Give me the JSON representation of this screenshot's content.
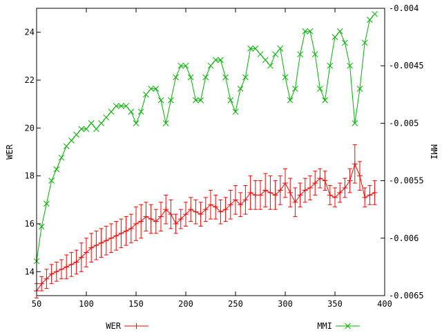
{
  "chart_data": {
    "type": "line",
    "xlabel": "",
    "ylabel": "WER",
    "y2label": "MMI",
    "xlim": [
      50,
      400
    ],
    "ylim": [
      13,
      25
    ],
    "y2lim": [
      -0.0065,
      -0.004
    ],
    "x_ticks": [
      "50",
      "100",
      "150",
      "200",
      "250",
      "300",
      "350",
      "400"
    ],
    "y_ticks": [
      "14",
      "16",
      "18",
      "20",
      "22",
      "24"
    ],
    "y2_ticks": [
      "-0.0065",
      "-0.006",
      "-0.0055",
      "-0.005",
      "-0.0045",
      "-0.004"
    ],
    "grid": false,
    "legend_position": "bottom",
    "series": [
      {
        "name": "WER",
        "axis": "left",
        "color": "#ff0000",
        "marker": "+",
        "x": [
          50,
          55,
          60,
          65,
          70,
          75,
          80,
          85,
          90,
          95,
          100,
          105,
          110,
          115,
          120,
          125,
          130,
          135,
          140,
          145,
          150,
          155,
          160,
          165,
          170,
          175,
          180,
          185,
          190,
          195,
          200,
          205,
          210,
          215,
          220,
          225,
          230,
          235,
          240,
          245,
          250,
          255,
          260,
          265,
          270,
          275,
          280,
          285,
          290,
          295,
          300,
          305,
          310,
          315,
          320,
          325,
          330,
          335,
          340,
          345,
          350,
          355,
          360,
          365,
          370,
          375,
          380,
          385,
          390
        ],
        "values": [
          13.2,
          13.5,
          13.7,
          13.9,
          14.0,
          14.1,
          14.2,
          14.3,
          14.4,
          14.6,
          14.8,
          15.0,
          15.1,
          15.2,
          15.3,
          15.4,
          15.5,
          15.6,
          15.7,
          15.8,
          16.0,
          16.1,
          16.3,
          16.2,
          16.1,
          16.3,
          16.6,
          16.4,
          16.0,
          16.2,
          16.4,
          16.6,
          16.5,
          16.4,
          16.6,
          16.8,
          16.7,
          16.5,
          16.6,
          16.8,
          17.0,
          16.8,
          17.0,
          17.3,
          17.2,
          17.2,
          17.4,
          17.3,
          17.2,
          17.4,
          17.7,
          17.3,
          16.9,
          17.2,
          17.4,
          17.5,
          17.7,
          17.9,
          17.8,
          17.2,
          17.1,
          17.3,
          17.5,
          17.8,
          18.5,
          18.0,
          17.1,
          17.2,
          17.3
        ],
        "err": [
          0.3,
          0.3,
          0.4,
          0.4,
          0.4,
          0.4,
          0.5,
          0.5,
          0.5,
          0.6,
          0.6,
          0.6,
          0.6,
          0.6,
          0.6,
          0.6,
          0.6,
          0.6,
          0.6,
          0.6,
          0.7,
          0.7,
          0.6,
          0.6,
          0.5,
          0.6,
          0.6,
          0.6,
          0.4,
          0.4,
          0.5,
          0.5,
          0.5,
          0.5,
          0.5,
          0.6,
          0.5,
          0.5,
          0.5,
          0.6,
          0.6,
          0.5,
          0.6,
          0.7,
          0.6,
          0.6,
          0.7,
          0.7,
          0.6,
          0.6,
          0.6,
          0.6,
          0.6,
          0.5,
          0.5,
          0.5,
          0.5,
          0.4,
          0.4,
          0.4,
          0.4,
          0.4,
          0.4,
          0.5,
          0.8,
          0.6,
          0.4,
          0.4,
          0.5
        ]
      },
      {
        "name": "MMI",
        "axis": "right",
        "color": "#00b000",
        "marker": "x",
        "x": [
          50,
          55,
          60,
          65,
          70,
          75,
          80,
          85,
          90,
          95,
          100,
          105,
          110,
          115,
          120,
          125,
          130,
          135,
          140,
          145,
          150,
          155,
          160,
          165,
          170,
          175,
          180,
          185,
          190,
          195,
          200,
          205,
          210,
          215,
          220,
          225,
          230,
          235,
          240,
          245,
          250,
          255,
          260,
          265,
          270,
          275,
          280,
          285,
          290,
          295,
          300,
          305,
          310,
          315,
          320,
          325,
          330,
          335,
          340,
          345,
          350,
          355,
          360,
          365,
          370,
          375,
          380,
          385,
          390
        ],
        "values": [
          -0.0062,
          -0.0059,
          -0.0057,
          -0.0055,
          -0.0054,
          -0.0053,
          -0.0052,
          -0.00515,
          -0.0051,
          -0.00505,
          -0.00505,
          -0.005,
          -0.00505,
          -0.005,
          -0.00495,
          -0.0049,
          -0.00485,
          -0.00485,
          -0.00485,
          -0.0049,
          -0.005,
          -0.0049,
          -0.00475,
          -0.0047,
          -0.0047,
          -0.0048,
          -0.005,
          -0.0048,
          -0.0046,
          -0.0045,
          -0.0045,
          -0.0046,
          -0.0048,
          -0.0048,
          -0.0046,
          -0.0045,
          -0.00445,
          -0.00445,
          -0.0046,
          -0.0048,
          -0.0049,
          -0.0047,
          -0.0046,
          -0.00435,
          -0.00435,
          -0.0044,
          -0.00445,
          -0.0045,
          -0.0044,
          -0.00435,
          -0.0046,
          -0.0048,
          -0.0047,
          -0.0044,
          -0.0042,
          -0.0042,
          -0.0044,
          -0.0047,
          -0.0048,
          -0.0045,
          -0.00425,
          -0.0042,
          -0.0043,
          -0.0045,
          -0.005,
          -0.0047,
          -0.0043,
          -0.0041,
          -0.00405
        ]
      }
    ]
  }
}
